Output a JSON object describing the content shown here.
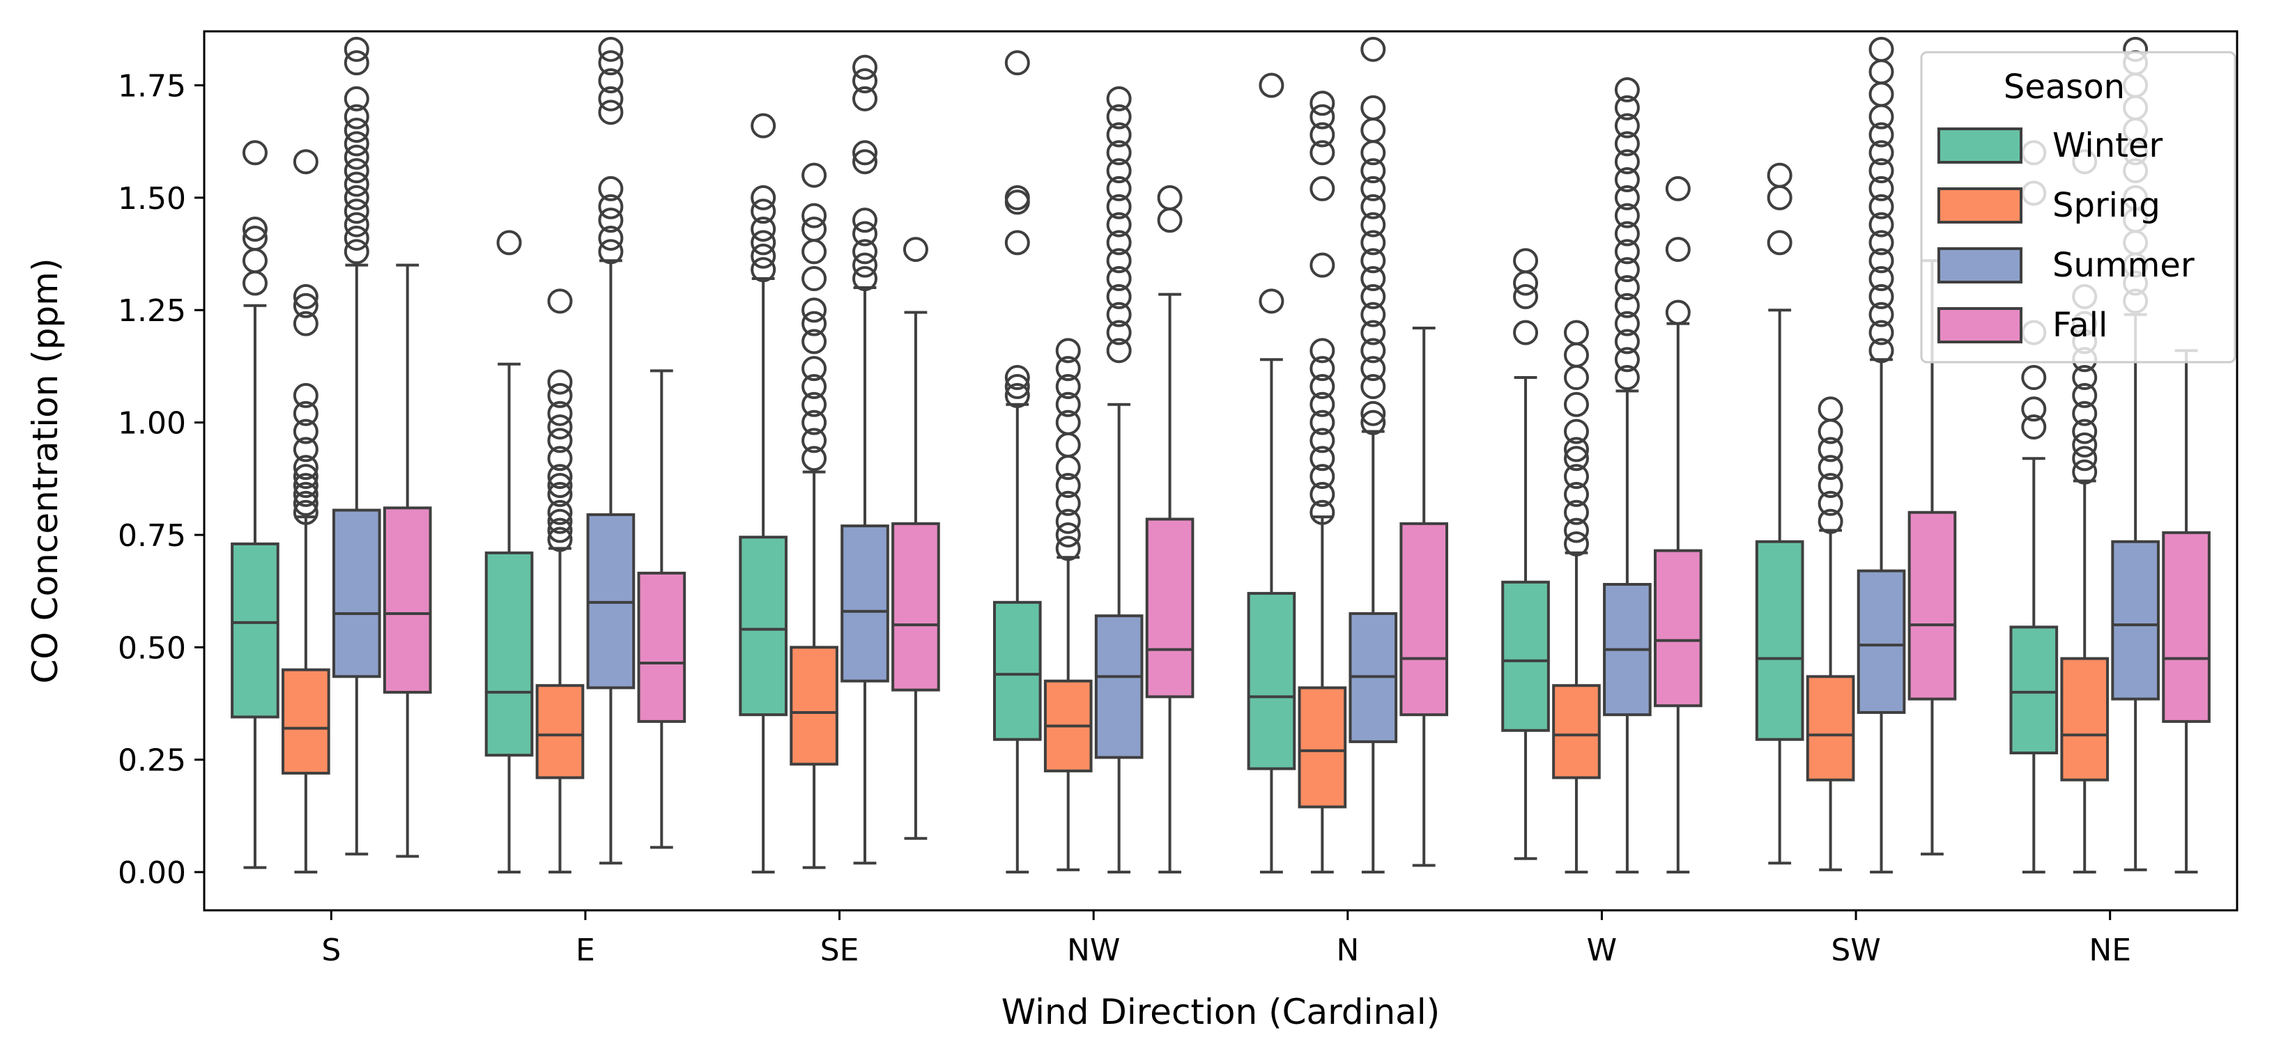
{
  "chart_data": {
    "type": "boxplot",
    "title": "",
    "xlabel": "Wind Direction (Cardinal)",
    "ylabel": "CO Concentration (ppm)",
    "ylim": [
      -0.085,
      1.87
    ],
    "yticks": [
      "0.00",
      "0.25",
      "0.50",
      "0.75",
      "1.00",
      "1.25",
      "1.50",
      "1.75"
    ],
    "ytick_values": [
      0,
      0.25,
      0.5,
      0.75,
      1.0,
      1.25,
      1.5,
      1.75
    ],
    "categories": [
      "S",
      "E",
      "SE",
      "NW",
      "N",
      "W",
      "SW",
      "NE"
    ],
    "legend": {
      "title": "Season",
      "position": "top-right",
      "entries": [
        "Winter",
        "Spring",
        "Summer",
        "Fall"
      ]
    },
    "series": [
      {
        "name": "Winter",
        "color": "#66c2a5",
        "boxes": [
          {
            "lower_whisker": 0.01,
            "q1": 0.345,
            "median": 0.555,
            "q3": 0.73,
            "upper_whisker": 1.26,
            "outliers": [
              1.31,
              1.36,
              1.41,
              1.43,
              1.6
            ]
          },
          {
            "lower_whisker": 0.0,
            "q1": 0.26,
            "median": 0.4,
            "q3": 0.71,
            "upper_whisker": 1.13,
            "outliers": [
              1.4
            ]
          },
          {
            "lower_whisker": 0.0,
            "q1": 0.35,
            "median": 0.54,
            "q3": 0.745,
            "upper_whisker": 1.32,
            "outliers": [
              1.34,
              1.37,
              1.4,
              1.43,
              1.47,
              1.5,
              1.66
            ]
          },
          {
            "lower_whisker": 0.0,
            "q1": 0.295,
            "median": 0.44,
            "q3": 0.6,
            "upper_whisker": 1.04,
            "outliers": [
              1.06,
              1.08,
              1.1,
              1.4,
              1.49,
              1.5,
              1.8
            ]
          },
          {
            "lower_whisker": 0.0,
            "q1": 0.23,
            "median": 0.39,
            "q3": 0.62,
            "upper_whisker": 1.14,
            "outliers": [
              1.27,
              1.75
            ]
          },
          {
            "lower_whisker": 0.03,
            "q1": 0.315,
            "median": 0.47,
            "q3": 0.645,
            "upper_whisker": 1.1,
            "outliers": [
              1.2,
              1.28,
              1.31,
              1.36
            ]
          },
          {
            "lower_whisker": 0.02,
            "q1": 0.295,
            "median": 0.475,
            "q3": 0.735,
            "upper_whisker": 1.25,
            "outliers": [
              1.4,
              1.5,
              1.55
            ]
          },
          {
            "lower_whisker": 0.0,
            "q1": 0.265,
            "median": 0.4,
            "q3": 0.545,
            "upper_whisker": 0.92,
            "outliers": [
              0.99,
              1.03,
              1.1,
              1.2,
              1.51,
              1.6
            ]
          }
        ]
      },
      {
        "name": "Spring",
        "color": "#fc8d62",
        "boxes": [
          {
            "lower_whisker": 0.0,
            "q1": 0.22,
            "median": 0.32,
            "q3": 0.45,
            "upper_whisker": 0.79,
            "outliers": [
              0.8,
              0.82,
              0.84,
              0.86,
              0.88,
              0.9,
              0.94,
              0.98,
              1.02,
              1.06,
              1.22,
              1.26,
              1.28,
              1.58
            ]
          },
          {
            "lower_whisker": 0.0,
            "q1": 0.21,
            "median": 0.305,
            "q3": 0.415,
            "upper_whisker": 0.72,
            "outliers": [
              0.74,
              0.76,
              0.78,
              0.8,
              0.84,
              0.86,
              0.88,
              0.92,
              0.96,
              0.99,
              1.02,
              1.06,
              1.09,
              1.27
            ]
          },
          {
            "lower_whisker": 0.01,
            "q1": 0.24,
            "median": 0.355,
            "q3": 0.5,
            "upper_whisker": 0.89,
            "outliers": [
              0.92,
              0.96,
              1.0,
              1.04,
              1.08,
              1.12,
              1.18,
              1.22,
              1.25,
              1.32,
              1.38,
              1.43,
              1.46,
              1.55
            ]
          },
          {
            "lower_whisker": 0.005,
            "q1": 0.225,
            "median": 0.325,
            "q3": 0.425,
            "upper_whisker": 0.7,
            "outliers": [
              0.72,
              0.75,
              0.78,
              0.82,
              0.86,
              0.9,
              0.95,
              1.0,
              1.04,
              1.08,
              1.12,
              1.16
            ]
          },
          {
            "lower_whisker": 0.0,
            "q1": 0.145,
            "median": 0.27,
            "q3": 0.41,
            "upper_whisker": 0.79,
            "outliers": [
              0.8,
              0.84,
              0.88,
              0.92,
              0.96,
              1.0,
              1.04,
              1.08,
              1.12,
              1.16,
              1.35,
              1.52,
              1.6,
              1.64,
              1.68,
              1.71
            ]
          },
          {
            "lower_whisker": 0.0,
            "q1": 0.21,
            "median": 0.305,
            "q3": 0.415,
            "upper_whisker": 0.71,
            "outliers": [
              0.73,
              0.76,
              0.8,
              0.84,
              0.88,
              0.92,
              0.94,
              0.98,
              1.04,
              1.1,
              1.15,
              1.2
            ]
          },
          {
            "lower_whisker": 0.005,
            "q1": 0.205,
            "median": 0.305,
            "q3": 0.435,
            "upper_whisker": 0.76,
            "outliers": [
              0.78,
              0.82,
              0.86,
              0.9,
              0.94,
              0.98,
              1.03
            ]
          },
          {
            "lower_whisker": 0.0,
            "q1": 0.205,
            "median": 0.305,
            "q3": 0.475,
            "upper_whisker": 0.87,
            "outliers": [
              0.89,
              0.92,
              0.95,
              0.98,
              1.02,
              1.06,
              1.1,
              1.14,
              1.18,
              1.22,
              1.28,
              1.58
            ]
          }
        ]
      },
      {
        "name": "Summer",
        "color": "#8da0cb",
        "boxes": [
          {
            "lower_whisker": 0.04,
            "q1": 0.435,
            "median": 0.575,
            "q3": 0.805,
            "upper_whisker": 1.35,
            "outliers": [
              1.38,
              1.41,
              1.44,
              1.47,
              1.5,
              1.53,
              1.56,
              1.59,
              1.62,
              1.65,
              1.68,
              1.72,
              1.8,
              1.83
            ]
          },
          {
            "lower_whisker": 0.02,
            "q1": 0.41,
            "median": 0.6,
            "q3": 0.795,
            "upper_whisker": 1.36,
            "outliers": [
              1.38,
              1.41,
              1.45,
              1.48,
              1.52,
              1.69,
              1.72,
              1.76,
              1.8,
              1.83
            ]
          },
          {
            "lower_whisker": 0.02,
            "q1": 0.425,
            "median": 0.58,
            "q3": 0.77,
            "upper_whisker": 1.3,
            "outliers": [
              1.32,
              1.35,
              1.38,
              1.42,
              1.45,
              1.58,
              1.6,
              1.72,
              1.76,
              1.79
            ]
          },
          {
            "lower_whisker": 0.0,
            "q1": 0.255,
            "median": 0.435,
            "q3": 0.57,
            "upper_whisker": 1.04,
            "outliers": [
              1.16,
              1.2,
              1.24,
              1.28,
              1.32,
              1.36,
              1.4,
              1.44,
              1.48,
              1.52,
              1.56,
              1.6,
              1.64,
              1.68,
              1.72
            ]
          },
          {
            "lower_whisker": 0.0,
            "q1": 0.29,
            "median": 0.435,
            "q3": 0.575,
            "upper_whisker": 0.98,
            "outliers": [
              1.0,
              1.02,
              1.08,
              1.12,
              1.16,
              1.2,
              1.24,
              1.28,
              1.32,
              1.36,
              1.4,
              1.44,
              1.48,
              1.52,
              1.56,
              1.6,
              1.65,
              1.7,
              1.83
            ]
          },
          {
            "lower_whisker": 0.0,
            "q1": 0.35,
            "median": 0.495,
            "q3": 0.64,
            "upper_whisker": 1.07,
            "outliers": [
              1.1,
              1.14,
              1.18,
              1.22,
              1.26,
              1.3,
              1.34,
              1.38,
              1.42,
              1.46,
              1.5,
              1.54,
              1.58,
              1.62,
              1.66,
              1.7,
              1.74
            ]
          },
          {
            "lower_whisker": 0.0,
            "q1": 0.355,
            "median": 0.505,
            "q3": 0.67,
            "upper_whisker": 1.14,
            "outliers": [
              1.16,
              1.2,
              1.24,
              1.28,
              1.32,
              1.36,
              1.4,
              1.44,
              1.48,
              1.52,
              1.56,
              1.6,
              1.64,
              1.68,
              1.73,
              1.78,
              1.83
            ]
          },
          {
            "lower_whisker": 0.005,
            "q1": 0.385,
            "median": 0.55,
            "q3": 0.735,
            "upper_whisker": 1.24,
            "outliers": [
              1.27,
              1.31,
              1.35,
              1.4,
              1.45,
              1.5,
              1.56,
              1.6,
              1.65,
              1.7,
              1.75,
              1.8,
              1.83
            ]
          }
        ]
      },
      {
        "name": "Fall",
        "color": "#e78ac3",
        "boxes": [
          {
            "lower_whisker": 0.035,
            "q1": 0.4,
            "median": 0.575,
            "q3": 0.81,
            "upper_whisker": 1.35,
            "outliers": []
          },
          {
            "lower_whisker": 0.055,
            "q1": 0.335,
            "median": 0.465,
            "q3": 0.665,
            "upper_whisker": 1.115,
            "outliers": []
          },
          {
            "lower_whisker": 0.075,
            "q1": 0.405,
            "median": 0.55,
            "q3": 0.775,
            "upper_whisker": 1.245,
            "outliers": [
              1.385
            ]
          },
          {
            "lower_whisker": 0.0,
            "q1": 0.39,
            "median": 0.495,
            "q3": 0.785,
            "upper_whisker": 1.285,
            "outliers": [
              1.45,
              1.5
            ]
          },
          {
            "lower_whisker": 0.015,
            "q1": 0.35,
            "median": 0.475,
            "q3": 0.775,
            "upper_whisker": 1.21,
            "outliers": []
          },
          {
            "lower_whisker": 0.0,
            "q1": 0.37,
            "median": 0.515,
            "q3": 0.715,
            "upper_whisker": 1.22,
            "outliers": [
              1.245,
              1.385,
              1.52
            ]
          },
          {
            "lower_whisker": 0.04,
            "q1": 0.385,
            "median": 0.55,
            "q3": 0.8,
            "upper_whisker": 1.36,
            "outliers": []
          },
          {
            "lower_whisker": 0.0,
            "q1": 0.335,
            "median": 0.475,
            "q3": 0.755,
            "upper_whisker": 1.16,
            "outliers": []
          }
        ]
      }
    ]
  }
}
